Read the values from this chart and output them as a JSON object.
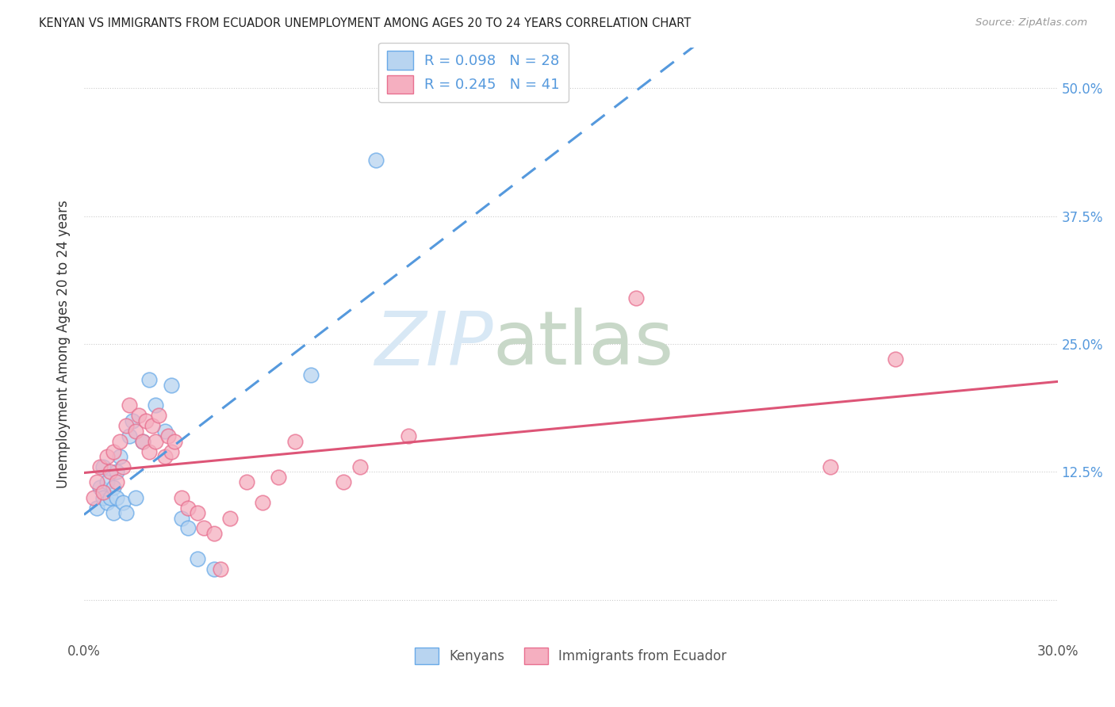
{
  "title": "KENYAN VS IMMIGRANTS FROM ECUADOR UNEMPLOYMENT AMONG AGES 20 TO 24 YEARS CORRELATION CHART",
  "source": "Source: ZipAtlas.com",
  "ylabel": "Unemployment Among Ages 20 to 24 years",
  "x_min": 0.0,
  "x_max": 0.3,
  "y_min": -0.04,
  "y_max": 0.54,
  "x_ticks": [
    0.0,
    0.05,
    0.1,
    0.15,
    0.2,
    0.25,
    0.3
  ],
  "x_tick_labels": [
    "0.0%",
    "",
    "",
    "",
    "",
    "",
    "30.0%"
  ],
  "y_ticks": [
    0.0,
    0.125,
    0.25,
    0.375,
    0.5
  ],
  "y_tick_labels": [
    "",
    "12.5%",
    "25.0%",
    "37.5%",
    "50.0%"
  ],
  "color_kenyan_fill": "#b8d4f0",
  "color_kenya_edge": "#6aaae8",
  "color_ecuador_fill": "#f5afc0",
  "color_ecuador_edge": "#e87090",
  "color_kenyan_line": "#5599dd",
  "color_ecuador_line": "#dd5577",
  "background_color": "#ffffff",
  "watermark_zip": "ZIP",
  "watermark_atlas": "atlas",
  "legend_R_kenyan": "R = 0.098",
  "legend_N_kenyan": "N = 28",
  "legend_R_ecuador": "R = 0.245",
  "legend_N_ecuador": "N = 41",
  "kenyan_x": [
    0.004,
    0.005,
    0.006,
    0.006,
    0.007,
    0.007,
    0.008,
    0.009,
    0.009,
    0.01,
    0.01,
    0.011,
    0.012,
    0.013,
    0.014,
    0.015,
    0.016,
    0.018,
    0.02,
    0.022,
    0.025,
    0.027,
    0.03,
    0.032,
    0.035,
    0.04,
    0.07,
    0.09
  ],
  "kenyan_y": [
    0.09,
    0.11,
    0.1,
    0.13,
    0.095,
    0.115,
    0.1,
    0.085,
    0.11,
    0.1,
    0.125,
    0.14,
    0.095,
    0.085,
    0.16,
    0.175,
    0.1,
    0.155,
    0.215,
    0.19,
    0.165,
    0.21,
    0.08,
    0.07,
    0.04,
    0.03,
    0.22,
    0.43
  ],
  "ecuador_x": [
    0.003,
    0.004,
    0.005,
    0.006,
    0.007,
    0.008,
    0.009,
    0.01,
    0.011,
    0.012,
    0.013,
    0.014,
    0.016,
    0.017,
    0.018,
    0.019,
    0.02,
    0.021,
    0.022,
    0.023,
    0.025,
    0.026,
    0.027,
    0.028,
    0.03,
    0.032,
    0.035,
    0.037,
    0.04,
    0.042,
    0.045,
    0.05,
    0.055,
    0.06,
    0.065,
    0.08,
    0.085,
    0.1,
    0.17,
    0.23,
    0.25
  ],
  "ecuador_y": [
    0.1,
    0.115,
    0.13,
    0.105,
    0.14,
    0.125,
    0.145,
    0.115,
    0.155,
    0.13,
    0.17,
    0.19,
    0.165,
    0.18,
    0.155,
    0.175,
    0.145,
    0.17,
    0.155,
    0.18,
    0.14,
    0.16,
    0.145,
    0.155,
    0.1,
    0.09,
    0.085,
    0.07,
    0.065,
    0.03,
    0.08,
    0.115,
    0.095,
    0.12,
    0.155,
    0.115,
    0.13,
    0.16,
    0.295,
    0.13,
    0.235
  ]
}
